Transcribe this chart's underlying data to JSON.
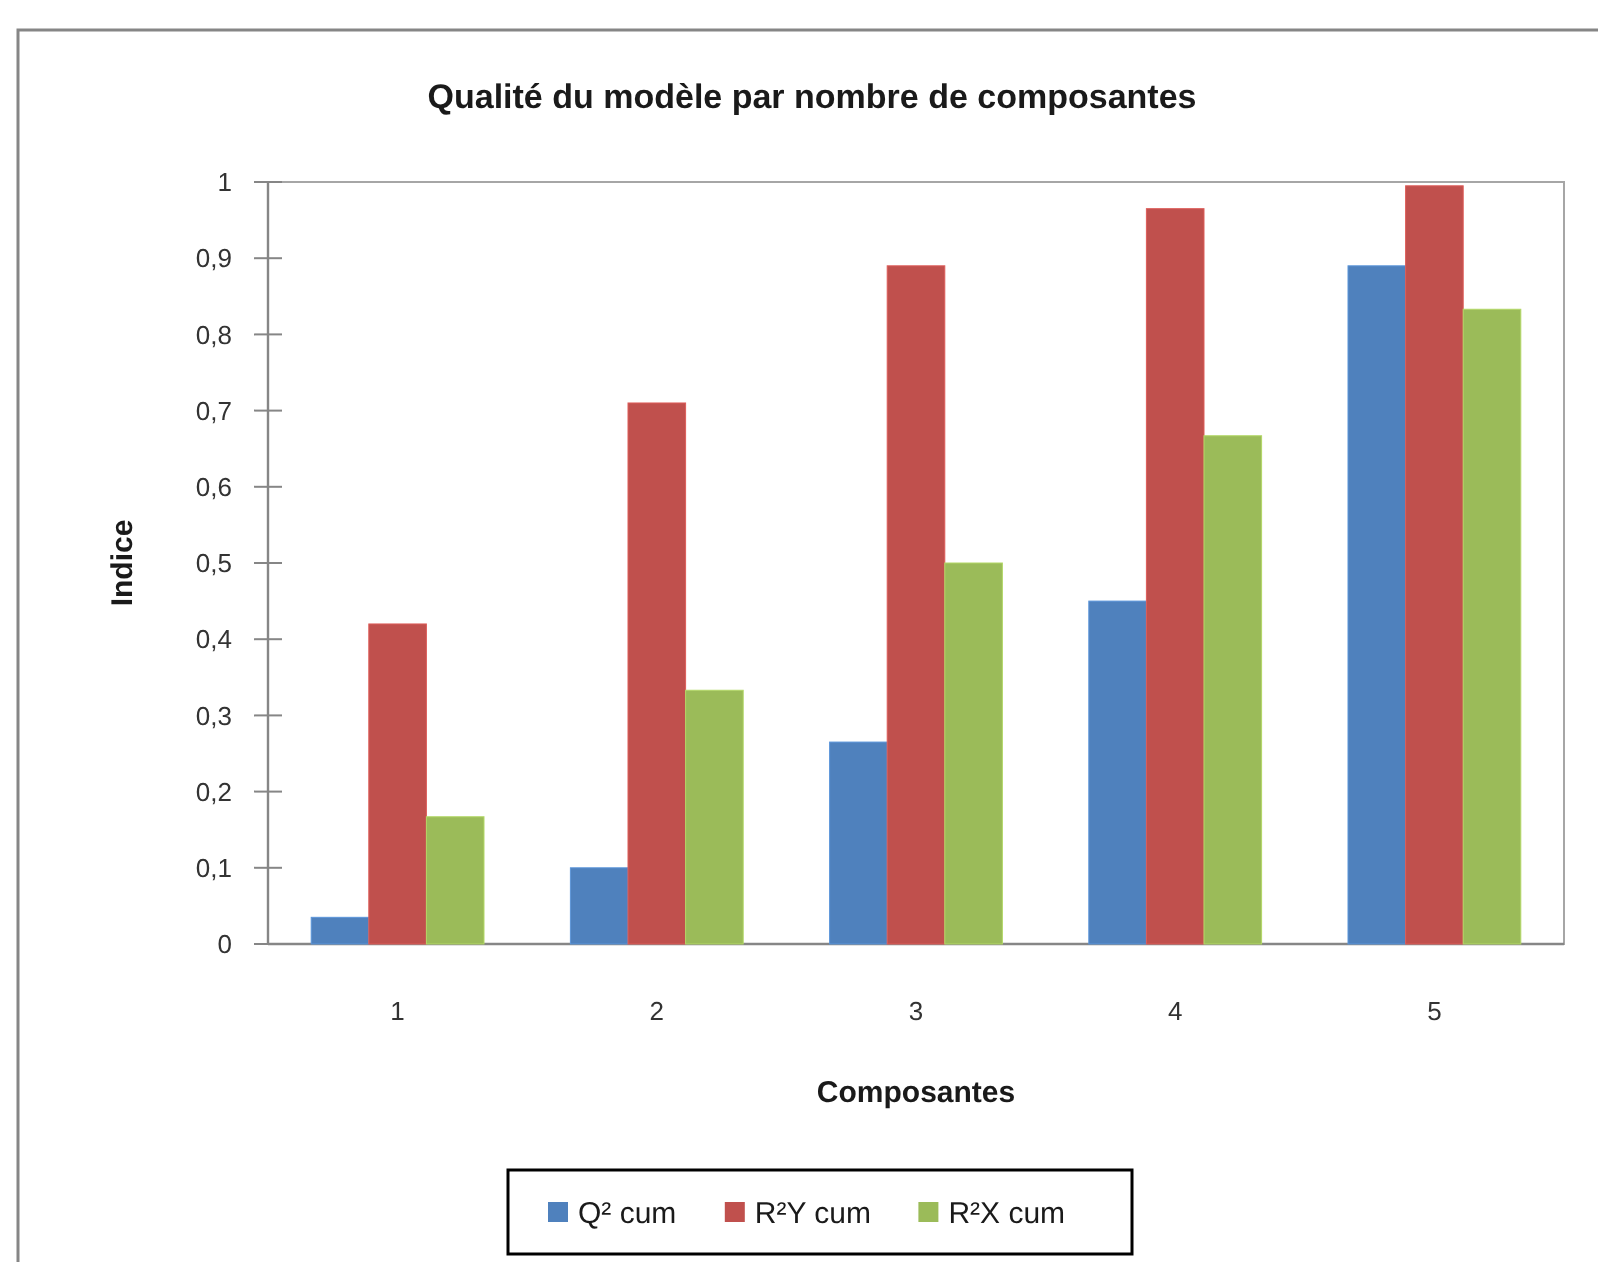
{
  "chart_data": {
    "type": "bar",
    "title": "Qualité du modèle par nombre de composantes",
    "xlabel": "Composantes",
    "ylabel": "Indice",
    "categories": [
      "1",
      "2",
      "3",
      "4",
      "5"
    ],
    "series": [
      {
        "name": "Q² cum",
        "color": "#4f81bd",
        "values": [
          0.035,
          0.1,
          0.265,
          0.45,
          0.89
        ]
      },
      {
        "name": "R²Y cum",
        "color": "#c0504d",
        "values": [
          0.42,
          0.71,
          0.89,
          0.965,
          0.995
        ]
      },
      {
        "name": "R²X cum",
        "color": "#9bbb59",
        "values": [
          0.167,
          0.333,
          0.5,
          0.667,
          0.833
        ]
      }
    ],
    "ylim": [
      0,
      1
    ],
    "yticks": [
      0,
      {
        "value": 0.1,
        "label": "0,1"
      },
      {
        "value": 0.2,
        "label": "0,2"
      },
      {
        "value": 0.3,
        "label": "0,3"
      },
      {
        "value": 0.4,
        "label": "0,4"
      },
      {
        "value": 0.5,
        "label": "0,5"
      },
      {
        "value": 0.6,
        "label": "0,6"
      },
      {
        "value": 0.7,
        "label": "0,7"
      },
      {
        "value": 0.8,
        "label": "0,8"
      },
      {
        "value": 0.9,
        "label": "0,9"
      },
      1
    ],
    "legend": "bottom"
  }
}
